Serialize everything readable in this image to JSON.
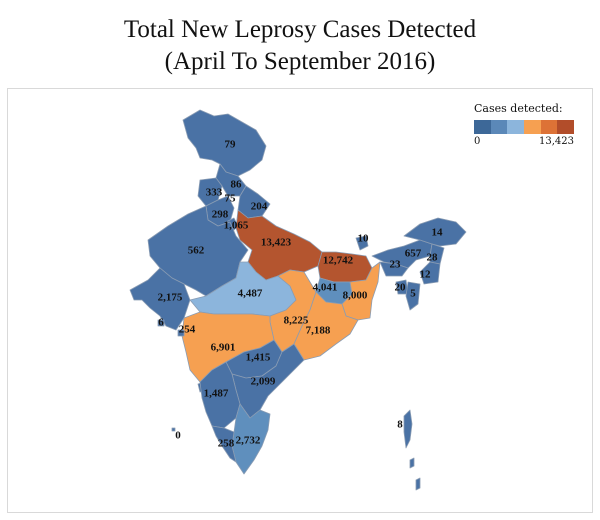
{
  "title_line1": "Total New Leprosy Cases Detected",
  "title_line2": "(April To September 2016)",
  "legend": {
    "title": "Cases detected:",
    "min_label": "0",
    "max_label": "13,423",
    "colors": [
      "#3d6898",
      "#5b88b8",
      "#8cb5dc",
      "#f6a051",
      "#dd7236",
      "#b24d2a"
    ]
  },
  "colors": {
    "region_default": "#4a72a5",
    "region_light": "#8cb5dc",
    "region_mid_blue": "#5f8fbd",
    "region_orange": "#f6a051",
    "region_dark": "#b4552f",
    "border": "#8a9cb3"
  },
  "chart_data": {
    "type": "choropleth",
    "title": "Total New Leprosy Cases Detected (April To September 2016)",
    "value_range": [
      0,
      13423
    ],
    "regions": [
      {
        "label": "79",
        "value": 79
      },
      {
        "label": "86",
        "value": 86
      },
      {
        "label": "333",
        "value": 333
      },
      {
        "label": "75",
        "value": 75
      },
      {
        "label": "204",
        "value": 204
      },
      {
        "label": "298",
        "value": 298
      },
      {
        "label": "1,065",
        "value": 1065
      },
      {
        "label": "13,423",
        "value": 13423
      },
      {
        "label": "562",
        "value": 562
      },
      {
        "label": "10",
        "value": 10
      },
      {
        "label": "14",
        "value": 14
      },
      {
        "label": "657",
        "value": 657
      },
      {
        "label": "28",
        "value": 28
      },
      {
        "label": "23",
        "value": 23
      },
      {
        "label": "12,742",
        "value": 12742
      },
      {
        "label": "12",
        "value": 12
      },
      {
        "label": "20",
        "value": 20
      },
      {
        "label": "5",
        "value": 5
      },
      {
        "label": "4,487",
        "value": 4487
      },
      {
        "label": "4,041",
        "value": 4041
      },
      {
        "label": "8,000",
        "value": 8000
      },
      {
        "label": "2,175",
        "value": 2175
      },
      {
        "label": "6",
        "value": 6
      },
      {
        "label": "254",
        "value": 254
      },
      {
        "label": "8,225",
        "value": 8225
      },
      {
        "label": "7,188",
        "value": 7188
      },
      {
        "label": "6,901",
        "value": 6901
      },
      {
        "label": "1,415",
        "value": 1415
      },
      {
        "label": "2,099",
        "value": 2099
      },
      {
        "label": "1,487",
        "value": 1487
      },
      {
        "label": "0",
        "value": 0
      },
      {
        "label": "258",
        "value": 258
      },
      {
        "label": "2,732",
        "value": 2732
      },
      {
        "label": "8",
        "value": 8
      }
    ]
  }
}
